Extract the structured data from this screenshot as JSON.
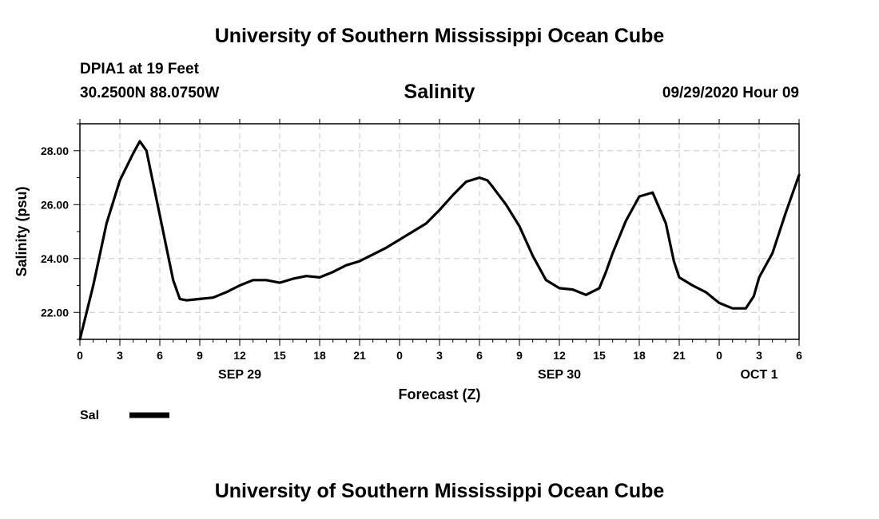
{
  "header": {
    "title_top": "University of Southern Mississippi Ocean Cube",
    "station": "DPIA1 at 19 Feet",
    "coords": "30.2500N 88.0750W",
    "timestamp": "09/29/2020 Hour 09",
    "title_bottom": "University of Southern Mississippi Ocean Cube"
  },
  "chart_data": {
    "type": "line",
    "title": "Salinity",
    "xlabel": "Forecast (Z)",
    "ylabel": "Salinity (psu)",
    "xlim": [
      0,
      54
    ],
    "ylim": [
      21.0,
      29.0
    ],
    "grid": true,
    "x_tick_labels": [
      "0",
      "3",
      "6",
      "9",
      "12",
      "15",
      "18",
      "21",
      "0",
      "3",
      "6",
      "9",
      "12",
      "15",
      "18",
      "21",
      "0",
      "3",
      "6"
    ],
    "date_labels": [
      {
        "label": "SEP 29",
        "at": 12
      },
      {
        "label": "SEP 30",
        "at": 36
      },
      {
        "label": "OCT 1",
        "at": 51
      }
    ],
    "y_tick_values": [
      22.0,
      24.0,
      26.0,
      28.0
    ],
    "y_tick_labels": [
      "22.00",
      "24.00",
      "26.00",
      "28.00"
    ],
    "legend": {
      "position": "bottom-left",
      "color": "#000000"
    },
    "series": [
      {
        "name": "Sal",
        "color": "#000000",
        "x": [
          0,
          1,
          2,
          3,
          4,
          4.5,
          5,
          6,
          7,
          7.5,
          8,
          9,
          10,
          11,
          12,
          13,
          14,
          15,
          16,
          17,
          18,
          19,
          20,
          21,
          22,
          23,
          24,
          25,
          26,
          27,
          28,
          29,
          30,
          30.6,
          31,
          32,
          33,
          34,
          35,
          36,
          37,
          38,
          39,
          39.5,
          40,
          41,
          42,
          43,
          44,
          44.6,
          45,
          46,
          47,
          48,
          49,
          50,
          50.6,
          51,
          52,
          53,
          54
        ],
        "values": [
          21.0,
          23.0,
          25.3,
          26.9,
          27.9,
          28.35,
          28.0,
          25.6,
          23.2,
          22.5,
          22.45,
          22.5,
          22.55,
          22.75,
          23.0,
          23.2,
          23.2,
          23.1,
          23.25,
          23.35,
          23.3,
          23.5,
          23.75,
          23.9,
          24.15,
          24.4,
          24.7,
          25.0,
          25.3,
          25.8,
          26.35,
          26.85,
          27.0,
          26.9,
          26.65,
          26.0,
          25.2,
          24.1,
          23.2,
          22.9,
          22.85,
          22.65,
          22.9,
          23.5,
          24.2,
          25.4,
          26.3,
          26.45,
          25.3,
          23.9,
          23.3,
          23.0,
          22.75,
          22.35,
          22.15,
          22.15,
          22.6,
          23.3,
          24.2,
          25.7,
          27.1
        ]
      }
    ]
  }
}
